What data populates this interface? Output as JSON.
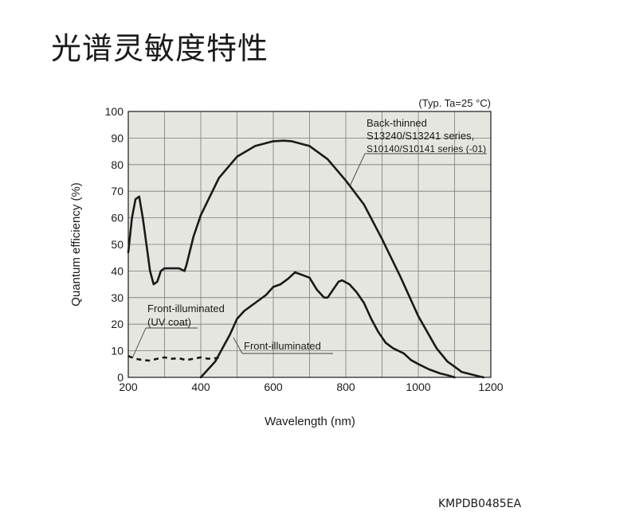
{
  "page": {
    "title": "光谱灵敏度特性",
    "document_code": "KMPDB0485EA"
  },
  "chart_data": {
    "type": "line",
    "xlabel": "Wavelength (nm)",
    "ylabel": "Quantum efficiency (%)",
    "condition_note": "(Typ. Ta=25 °C)",
    "xlim": [
      200,
      1200
    ],
    "ylim": [
      0,
      100
    ],
    "x_ticks": [
      200,
      400,
      600,
      800,
      1000,
      1200
    ],
    "y_ticks": [
      0,
      10,
      20,
      30,
      40,
      50,
      60,
      70,
      80,
      90,
      100
    ],
    "x_grid_step": 100,
    "grid": true,
    "plot_background": "#e6e6e0",
    "line_color": "#1a1a1a",
    "series": [
      {
        "name_lines": [
          "Back-thinned",
          "S13240/S13241 series,",
          "S10140/S10141 series (-01)"
        ],
        "style": "solid",
        "points": [
          [
            200,
            47
          ],
          [
            210,
            60
          ],
          [
            220,
            67
          ],
          [
            230,
            68
          ],
          [
            240,
            60
          ],
          [
            250,
            50
          ],
          [
            260,
            40
          ],
          [
            270,
            35
          ],
          [
            280,
            36
          ],
          [
            290,
            40
          ],
          [
            300,
            41
          ],
          [
            320,
            41
          ],
          [
            340,
            41
          ],
          [
            355,
            40
          ],
          [
            360,
            42
          ],
          [
            380,
            53
          ],
          [
            400,
            61
          ],
          [
            450,
            75
          ],
          [
            500,
            83
          ],
          [
            550,
            87
          ],
          [
            600,
            88.8
          ],
          [
            630,
            89
          ],
          [
            650,
            88.8
          ],
          [
            700,
            87
          ],
          [
            750,
            82
          ],
          [
            800,
            74
          ],
          [
            850,
            65
          ],
          [
            900,
            52
          ],
          [
            950,
            38
          ],
          [
            1000,
            23
          ],
          [
            1050,
            11
          ],
          [
            1080,
            6
          ],
          [
            1100,
            4
          ],
          [
            1120,
            2
          ],
          [
            1150,
            1
          ],
          [
            1170,
            0.3
          ],
          [
            1180,
            0
          ]
        ]
      },
      {
        "name_lines": [
          "Front-illuminated",
          "(UV coat)"
        ],
        "style": "dashed",
        "points": [
          [
            200,
            8
          ],
          [
            220,
            7
          ],
          [
            240,
            6.5
          ],
          [
            260,
            6.3
          ],
          [
            280,
            7
          ],
          [
            300,
            7.5
          ],
          [
            320,
            7
          ],
          [
            340,
            7.2
          ],
          [
            360,
            6.5
          ],
          [
            380,
            7
          ],
          [
            400,
            7.5
          ],
          [
            420,
            7
          ],
          [
            440,
            7.2
          ],
          [
            450,
            7.5
          ]
        ]
      },
      {
        "name_lines": [
          "Front-illuminated"
        ],
        "style": "solid",
        "points": [
          [
            400,
            0
          ],
          [
            420,
            3
          ],
          [
            440,
            6
          ],
          [
            460,
            11
          ],
          [
            480,
            16
          ],
          [
            500,
            22
          ],
          [
            520,
            25
          ],
          [
            550,
            28
          ],
          [
            580,
            31
          ],
          [
            600,
            34
          ],
          [
            620,
            35
          ],
          [
            640,
            37
          ],
          [
            660,
            39.5
          ],
          [
            680,
            38.5
          ],
          [
            700,
            37.5
          ],
          [
            720,
            33
          ],
          [
            740,
            30
          ],
          [
            750,
            30
          ],
          [
            760,
            32
          ],
          [
            780,
            36
          ],
          [
            790,
            36.5
          ],
          [
            810,
            35
          ],
          [
            830,
            32
          ],
          [
            850,
            28
          ],
          [
            870,
            22
          ],
          [
            890,
            17
          ],
          [
            910,
            13
          ],
          [
            930,
            11
          ],
          [
            960,
            9
          ],
          [
            980,
            6.5
          ],
          [
            1000,
            5
          ],
          [
            1030,
            3
          ],
          [
            1060,
            1.5
          ],
          [
            1080,
            0.8
          ],
          [
            1100,
            0
          ]
        ]
      }
    ]
  }
}
